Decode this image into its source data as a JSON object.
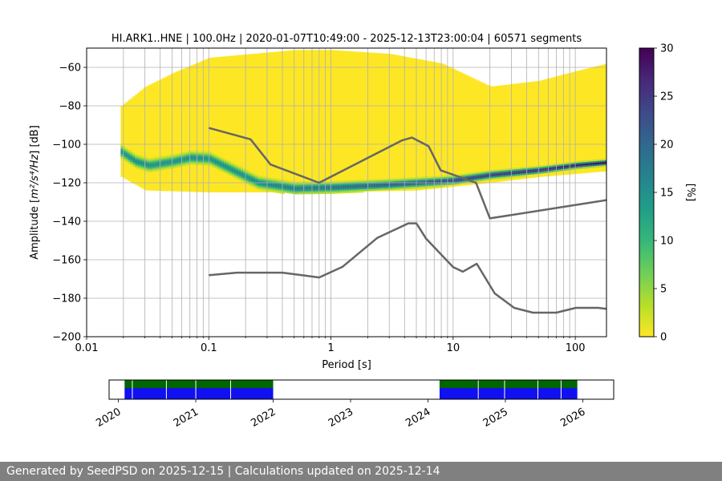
{
  "chart_data": [
    {
      "type": "heatmap",
      "title": "HI.ARK1..HNE | 100.0Hz | 2020-01-07T10:49:00 - 2025-12-13T23:00:04 | 60571 segments",
      "xlabel": "Period [s]",
      "ylabel_prefix": "Amplitude [",
      "ylabel_math": "m²/s⁴/Hz",
      "ylabel_suffix": "] [dB]",
      "xscale": "log",
      "xlim": [
        0.01,
        180
      ],
      "ylim": [
        -200,
        -50
      ],
      "x_ticks": [
        {
          "value": 0.01,
          "label": "0.01"
        },
        {
          "value": 0.1,
          "label": "0.1"
        },
        {
          "value": 1,
          "label": "1"
        },
        {
          "value": 10,
          "label": "10"
        },
        {
          "value": 100,
          "label": "100"
        }
      ],
      "y_ticks": [
        {
          "value": -60,
          "label": "−60"
        },
        {
          "value": -80,
          "label": "−80"
        },
        {
          "value": -100,
          "label": "−100"
        },
        {
          "value": -120,
          "label": "−120"
        },
        {
          "value": -140,
          "label": "−140"
        },
        {
          "value": -160,
          "label": "−160"
        },
        {
          "value": -180,
          "label": "−180"
        },
        {
          "value": -200,
          "label": "−200"
        }
      ],
      "colorbar": {
        "label": "[%]",
        "range": [
          0,
          30
        ],
        "ticks": [
          {
            "value": 0,
            "label": "0"
          },
          {
            "value": 5,
            "label": "5"
          },
          {
            "value": 10,
            "label": "10"
          },
          {
            "value": 15,
            "label": "15"
          },
          {
            "value": 20,
            "label": "20"
          },
          {
            "value": 25,
            "label": "25"
          },
          {
            "value": 30,
            "label": "30"
          }
        ],
        "colormap": [
          "#fde725",
          "#b5de2b",
          "#6ece58",
          "#35b779",
          "#1f9e89",
          "#26828e",
          "#31688e",
          "#3e4989",
          "#482878",
          "#440154"
        ]
      },
      "series": [
        {
          "name": "High Noise Model",
          "color": "#666666",
          "points": [
            [
              0.1,
              -91.5
            ],
            [
              0.22,
              -97.4
            ],
            [
              0.32,
              -110.5
            ],
            [
              0.8,
              -120
            ],
            [
              3.8,
              -98
            ],
            [
              4.6,
              -96.5
            ],
            [
              6.3,
              -101
            ],
            [
              7.9,
              -113.5
            ],
            [
              15.4,
              -120
            ],
            [
              20,
              -138.5
            ],
            [
              180,
              -129
            ]
          ]
        },
        {
          "name": "Low Noise Model",
          "color": "#666666",
          "points": [
            [
              0.1,
              -168
            ],
            [
              0.17,
              -166.7
            ],
            [
              0.4,
              -166.7
            ],
            [
              0.8,
              -169.2
            ],
            [
              1.24,
              -163.7
            ],
            [
              2.4,
              -148.6
            ],
            [
              4.3,
              -141.1
            ],
            [
              5,
              -141.1
            ],
            [
              6,
              -149
            ],
            [
              10,
              -163.8
            ],
            [
              12,
              -166.2
            ],
            [
              15.6,
              -162.1
            ],
            [
              21.9,
              -177.5
            ],
            [
              31.6,
              -185
            ],
            [
              45,
              -187.5
            ],
            [
              70,
              -187.5
            ],
            [
              101,
              -185
            ],
            [
              154,
              -185
            ],
            [
              180,
              -185.5
            ]
          ]
        }
      ],
      "mode_curve": [
        [
          0.019,
          -104
        ],
        [
          0.025,
          -109
        ],
        [
          0.032,
          -111
        ],
        [
          0.05,
          -109
        ],
        [
          0.07,
          -107
        ],
        [
          0.1,
          -107.5
        ],
        [
          0.15,
          -113
        ],
        [
          0.25,
          -120
        ],
        [
          0.5,
          -123
        ],
        [
          1,
          -122.5
        ],
        [
          3,
          -121
        ],
        [
          7,
          -119.5
        ],
        [
          10,
          -118.8
        ],
        [
          20,
          -116
        ],
        [
          50,
          -113.5
        ],
        [
          100,
          -111
        ],
        [
          180,
          -109.5
        ]
      ],
      "noise_cloud": {
        "upper": [
          [
            0.019,
            -80
          ],
          [
            0.03,
            -70
          ],
          [
            0.05,
            -63
          ],
          [
            0.1,
            -55
          ],
          [
            0.5,
            -51
          ],
          [
            1,
            -51
          ],
          [
            3,
            -53
          ],
          [
            8,
            -58
          ],
          [
            20,
            -70
          ],
          [
            50,
            -67
          ],
          [
            100,
            -62
          ],
          [
            180,
            -58
          ]
        ],
        "lower": [
          [
            0.019,
            -117
          ],
          [
            0.03,
            -124
          ],
          [
            0.1,
            -125
          ],
          [
            1,
            -125
          ],
          [
            5,
            -124
          ],
          [
            10,
            -122
          ],
          [
            20,
            -120
          ],
          [
            50,
            -117
          ],
          [
            180,
            -114
          ]
        ]
      }
    },
    {
      "type": "timeline",
      "x_ticks": [
        {
          "value": 2020,
          "label": "2020"
        },
        {
          "value": 2021,
          "label": "2021"
        },
        {
          "value": 2022,
          "label": "2022"
        },
        {
          "value": 2023,
          "label": "2023"
        },
        {
          "value": 2024,
          "label": "2024"
        },
        {
          "value": 2025,
          "label": "2025"
        },
        {
          "value": 2026,
          "label": "2026"
        }
      ],
      "xlim": [
        2019.88,
        2026.4
      ],
      "coverage_periods": [
        [
          2020.08,
          2022.0
        ],
        [
          2024.15,
          2025.93
        ]
      ],
      "data_gaps": [
        2020.18,
        2020.62,
        2021.0,
        2021.45,
        2024.65,
        2024.99,
        2025.42,
        2025.72
      ],
      "colors": {
        "available": "#1010f0",
        "used": "#006600"
      }
    }
  ],
  "footer": {
    "text": "Generated by SeedPSD on 2025-12-15 | Calculations updated on 2025-12-14"
  }
}
